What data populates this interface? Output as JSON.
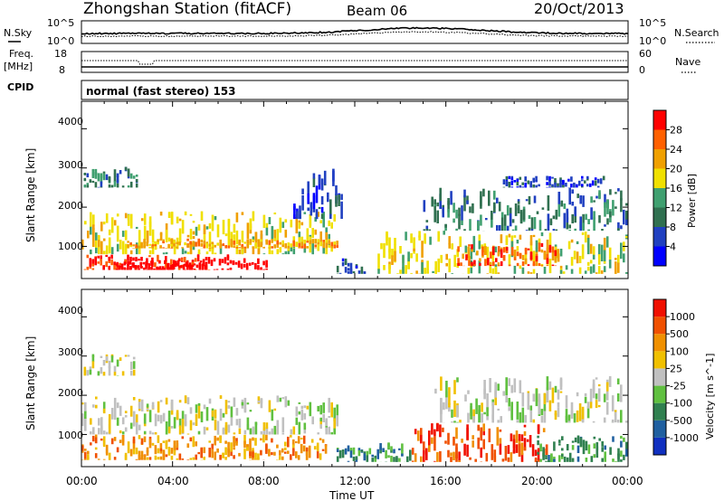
{
  "header": {
    "title": "Zhongshan Station (fitACF)",
    "beam": "Beam 06",
    "date": "20/Oct/2013"
  },
  "noise_panel": {
    "left_label": "N.Sky",
    "left_ticks": [
      "10^5",
      "10^0"
    ],
    "right_ticks": [
      "10^5",
      "10^0"
    ],
    "right_label": "N.Search"
  },
  "freq_panel": {
    "left_label_1": "Freq.",
    "left_label_2": "[MHz]",
    "left_ticks": [
      "18",
      "8"
    ],
    "right_ticks": [
      "60",
      "0"
    ],
    "right_label": "Nave"
  },
  "cpid": {
    "label": "CPID",
    "text": "normal (fast stereo) 153"
  },
  "power_panel": {
    "ylabel": "Slant Range [km]",
    "yticks": [
      "4000",
      "3000",
      "2000",
      "1000"
    ],
    "colorbar_label": "Power [dB]",
    "colorbar_ticks": [
      "28",
      "24",
      "20",
      "16",
      "12",
      "8",
      "4"
    ],
    "colors": [
      "#0000ff",
      "#2040c0",
      "#307050",
      "#40a070",
      "#f0e000",
      "#f0a000",
      "#ff6000",
      "#ff0000"
    ]
  },
  "velocity_panel": {
    "ylabel": "Slant Range [km]",
    "yticks": [
      "4000",
      "3000",
      "2000",
      "1000"
    ],
    "colorbar_label": "Velocity [m s^-1]",
    "colorbar_ticks": [
      "1000",
      "500",
      "100",
      "25",
      "-25",
      "-100",
      "-500",
      "-1000"
    ],
    "colors": [
      "#1030c0",
      "#2060a0",
      "#308050",
      "#60c040",
      "#c0c0c0",
      "#f0c000",
      "#f09000",
      "#f05000",
      "#f01000"
    ]
  },
  "x_axis": {
    "ticks": [
      "00:00",
      "04:00",
      "08:00",
      "12:00",
      "16:00",
      "20:00",
      "00:00"
    ],
    "label": "Time UT"
  },
  "chart_data": [
    {
      "type": "heatmap",
      "name": "power",
      "x_range": [
        "00:00",
        "00:00"
      ],
      "y_range_km": [
        180,
        4700
      ],
      "color_range_db": [
        3,
        31
      ],
      "regions": [
        {
          "t": [
            0.1,
            6.5
          ],
          "r": [
            400,
            800
          ],
          "level": 7
        },
        {
          "t": [
            1.5,
            5.5
          ],
          "r": [
            400,
            650
          ],
          "level": 8
        },
        {
          "t": [
            6.5,
            8.2
          ],
          "r": [
            400,
            700
          ],
          "level": 8
        },
        {
          "t": [
            0,
            11.3
          ],
          "r": [
            800,
            1900
          ],
          "level": 4
        },
        {
          "t": [
            2,
            11.3
          ],
          "r": [
            950,
            1200
          ],
          "level": 5
        },
        {
          "t": [
            0.1,
            2.5
          ],
          "r": [
            2500,
            3050
          ],
          "level": 2
        },
        {
          "t": [
            9.3,
            11.5
          ],
          "r": [
            1700,
            3000
          ],
          "level": 1
        },
        {
          "t": [
            11.2,
            12.5
          ],
          "r": [
            300,
            700
          ],
          "level": 1
        },
        {
          "t": [
            13,
            24
          ],
          "r": [
            300,
            1400
          ],
          "level": 4
        },
        {
          "t": [
            16.5,
            21
          ],
          "r": [
            500,
            1100
          ],
          "level": 6
        },
        {
          "t": [
            15,
            24
          ],
          "r": [
            1400,
            2500
          ],
          "level": 2
        },
        {
          "t": [
            18.5,
            23
          ],
          "r": [
            2500,
            2800
          ],
          "level": 1
        }
      ]
    },
    {
      "type": "heatmap",
      "name": "velocity",
      "x_range": [
        "00:00",
        "00:00"
      ],
      "y_range_km": [
        180,
        4700
      ],
      "color_range_m_s": [
        -1000,
        1000
      ],
      "regions": [
        {
          "t": [
            0,
            11.3
          ],
          "r": [
            1000,
            2000
          ],
          "level": 4
        },
        {
          "t": [
            0,
            10.8
          ],
          "r": [
            350,
            1000
          ],
          "level": 6
        },
        {
          "t": [
            0.1,
            2.5
          ],
          "r": [
            2500,
            3050
          ],
          "level": 4
        },
        {
          "t": [
            11.2,
            14.5
          ],
          "r": [
            300,
            800
          ],
          "level": 2
        },
        {
          "t": [
            14.5,
            20.5
          ],
          "r": [
            300,
            1300
          ],
          "level": 7
        },
        {
          "t": [
            20,
            24
          ],
          "r": [
            300,
            1000
          ],
          "level": 2
        },
        {
          "t": [
            15.5,
            24
          ],
          "r": [
            1300,
            2500
          ],
          "level": 4
        }
      ]
    }
  ]
}
